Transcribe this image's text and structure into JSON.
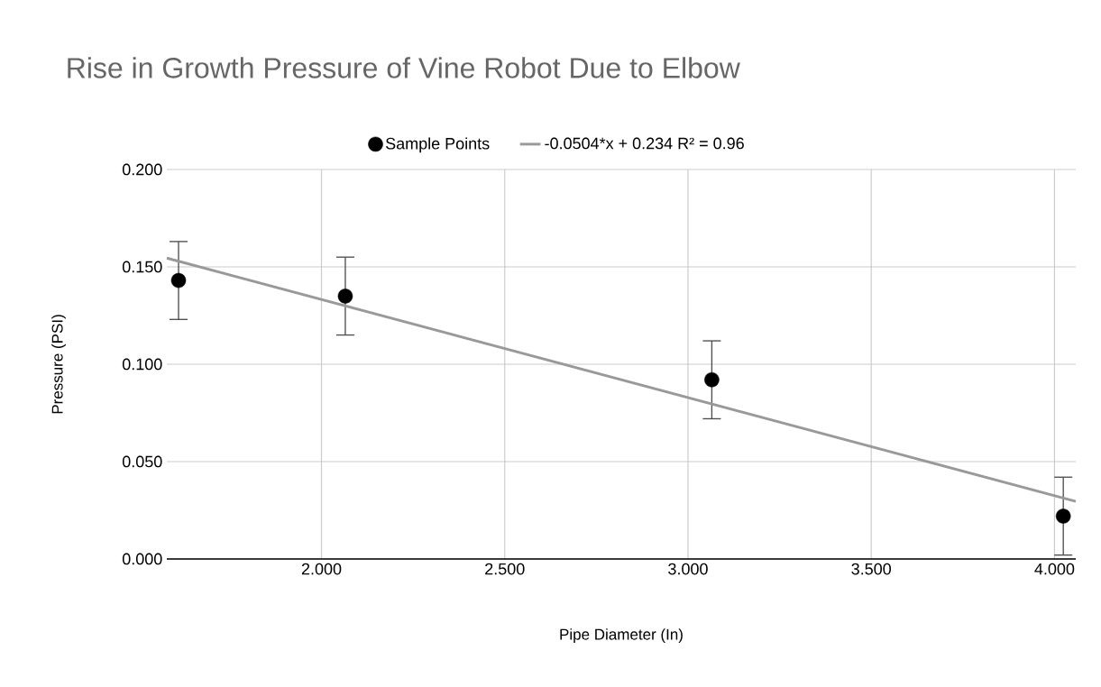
{
  "chart_data": {
    "type": "scatter",
    "title": "Rise in Growth Pressure of Vine Robot Due to Elbow",
    "xlabel": "Pipe Diameter (In)",
    "ylabel": "Pressure (PSI)",
    "xlim": [
      1.578,
      4.058
    ],
    "ylim": [
      0,
      0.2
    ],
    "xticks": [
      {
        "value": 2,
        "label": "2.000"
      },
      {
        "value": 2.5,
        "label": "2.500"
      },
      {
        "value": 3,
        "label": "3.000"
      },
      {
        "value": 3.5,
        "label": "3.500"
      },
      {
        "value": 4,
        "label": "4.000"
      }
    ],
    "yticks": [
      {
        "value": 0,
        "label": "0.000"
      },
      {
        "value": 0.05,
        "label": "0.050"
      },
      {
        "value": 0.1,
        "label": "0.100"
      },
      {
        "value": 0.15,
        "label": "0.150"
      },
      {
        "value": 0.2,
        "label": "0.200"
      }
    ],
    "grid": true,
    "legend": "top",
    "series": [
      {
        "name": "Sample Points",
        "marker": "circle",
        "color": "#000000",
        "x": [
          1.61,
          2.065,
          3.065,
          4.024
        ],
        "values": [
          0.143,
          0.135,
          0.092,
          0.022
        ],
        "errors": [
          0.02,
          0.02,
          0.02,
          0.02
        ]
      },
      {
        "name": "-0.0504*x + 0.234 R² = 0.96",
        "type": "line",
        "marker": "none",
        "color": "#999999",
        "x": [
          1.578,
          4.058
        ],
        "values": [
          0.1545,
          0.0296
        ]
      }
    ]
  }
}
